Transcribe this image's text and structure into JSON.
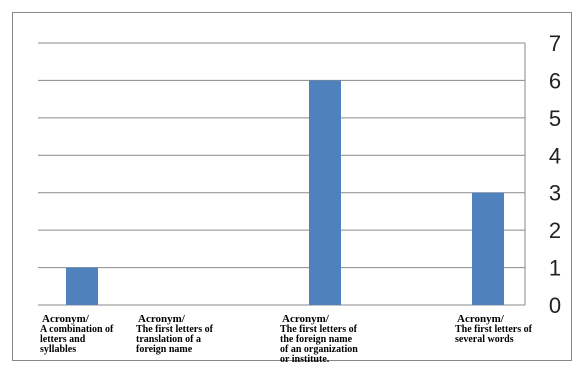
{
  "chart_data": {
    "type": "bar",
    "categories": [
      [
        "Acronym/",
        "A combination of",
        "letters and",
        "syllables"
      ],
      [
        "Acronym/",
        "The first letters of",
        "translation of a",
        "foreign name"
      ],
      [
        "Acronym/",
        "The first letters of",
        "the foreign name",
        "of an organization",
        "or institute."
      ],
      [
        "Acronym/",
        "The first letters of",
        "several words"
      ]
    ],
    "values": [
      1,
      0,
      6,
      3
    ],
    "yticks": [
      0,
      1,
      2,
      3,
      4,
      5,
      6,
      7
    ],
    "ylim": [
      0,
      7
    ],
    "grid": true,
    "y_axis_side": "right",
    "bar_color": "#4f81bd",
    "title": "",
    "xlabel": "",
    "ylabel": ""
  }
}
